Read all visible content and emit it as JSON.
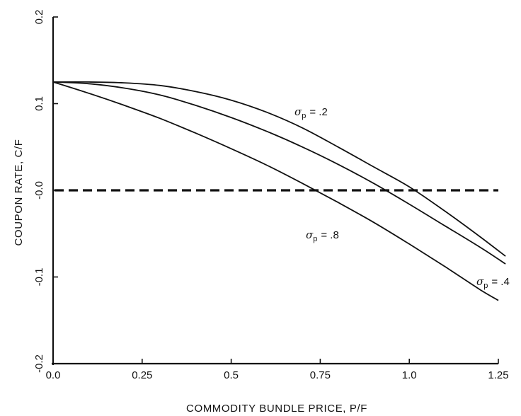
{
  "chart_data": {
    "type": "line",
    "xlabel": "COMMODITY BUNDLE PRICE, P/F",
    "ylabel": "COUPON RATE, C/F",
    "xlim": [
      0.0,
      1.25
    ],
    "ylim": [
      -0.2,
      0.2
    ],
    "x_ticks": [
      "0.0",
      "0.25",
      "0.5",
      "0.75",
      "1.0",
      "1.25"
    ],
    "y_ticks": [
      "-0.2",
      "-0.1",
      "-0.0",
      "0.1",
      "0.2"
    ],
    "grid": false,
    "series": [
      {
        "name": "σp = .2",
        "label_symbol": "σ",
        "label_sub": "p",
        "label_value": "= .2",
        "color": "#111111",
        "x": [
          0.0,
          0.1,
          0.2,
          0.3,
          0.4,
          0.5,
          0.6,
          0.7,
          0.8,
          0.9,
          1.0,
          1.1,
          1.2,
          1.27
        ],
        "y": [
          0.125,
          0.125,
          0.124,
          0.121,
          0.114,
          0.104,
          0.09,
          0.072,
          0.05,
          0.027,
          0.004,
          -0.024,
          -0.054,
          -0.076
        ]
      },
      {
        "name": "σp = .4",
        "label_symbol": "σ",
        "label_sub": "p",
        "label_value": "= .4",
        "color": "#111111",
        "x": [
          0.0,
          0.1,
          0.2,
          0.3,
          0.4,
          0.5,
          0.6,
          0.7,
          0.8,
          0.9,
          1.0,
          1.1,
          1.2,
          1.27
        ],
        "y": [
          0.125,
          0.123,
          0.118,
          0.11,
          0.098,
          0.084,
          0.068,
          0.05,
          0.03,
          0.008,
          -0.016,
          -0.041,
          -0.066,
          -0.085
        ]
      },
      {
        "name": "σp = .8",
        "label_symbol": "σ",
        "label_sub": "p",
        "label_value": "= .8",
        "color": "#111111",
        "x": [
          0.0,
          0.1,
          0.2,
          0.3,
          0.4,
          0.5,
          0.6,
          0.7,
          0.8,
          0.9,
          1.0,
          1.1,
          1.2,
          1.25
        ],
        "y": [
          0.125,
          0.112,
          0.098,
          0.083,
          0.066,
          0.048,
          0.029,
          0.008,
          -0.014,
          -0.037,
          -0.062,
          -0.088,
          -0.115,
          -0.127
        ]
      }
    ],
    "reference_line": {
      "y": 0.0,
      "style": "dashed",
      "color": "#111111"
    }
  }
}
